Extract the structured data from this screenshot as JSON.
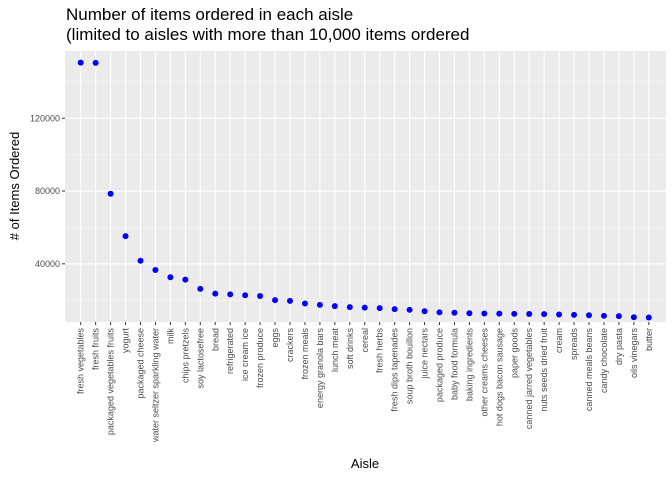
{
  "chart_data": {
    "type": "scatter",
    "title_lines": [
      "Number of items ordered in each aisle",
      "(limited to aisles with more than 10,000 items ordered"
    ],
    "xlabel": "Aisle",
    "ylabel": "# of Items Ordered",
    "y_ticks": [
      40000,
      80000,
      120000
    ],
    "y_tick_labels": [
      "40000",
      "80000",
      "120000"
    ],
    "ylim": [
      8000,
      157000
    ],
    "grid": true,
    "point_color": "#0000ff",
    "panel_color": "#ebebeb",
    "categories": [
      "fresh vegetables",
      "fresh fruits",
      "packaged vegetables fruits",
      "yogurt",
      "packaged cheese",
      "water seltzer sparkling water",
      "milk",
      "chips pretzels",
      "soy lactosefree",
      "bread",
      "refrigerated",
      "ice cream ice",
      "frozen produce",
      "eggs",
      "crackers",
      "frozen meals",
      "energy granola bars",
      "lunch meat",
      "soft drinks",
      "cereal",
      "fresh herbs",
      "fresh dips tapenades",
      "soup broth bouillon",
      "juice nectars",
      "packaged produce",
      "baby food formula",
      "baking ingredients",
      "other creams cheeses",
      "hot dogs bacon sausage",
      "paper goods",
      "canned jarred vegetables",
      "nuts seeds dried fruit",
      "cream",
      "spreads",
      "canned meals beans",
      "candy chocolate",
      "dry pasta",
      "oils vinegars",
      "butter"
    ],
    "values": [
      150600,
      150500,
      78500,
      55200,
      41700,
      36600,
      32600,
      31300,
      26200,
      23600,
      23200,
      22700,
      22300,
      20000,
      19600,
      18200,
      17400,
      16700,
      16200,
      15900,
      15600,
      15100,
      14700,
      13900,
      13300,
      13100,
      12800,
      12700,
      12600,
      12500,
      12400,
      12300,
      12100,
      11900,
      11700,
      11400,
      11200,
      10600,
      10500
    ]
  }
}
